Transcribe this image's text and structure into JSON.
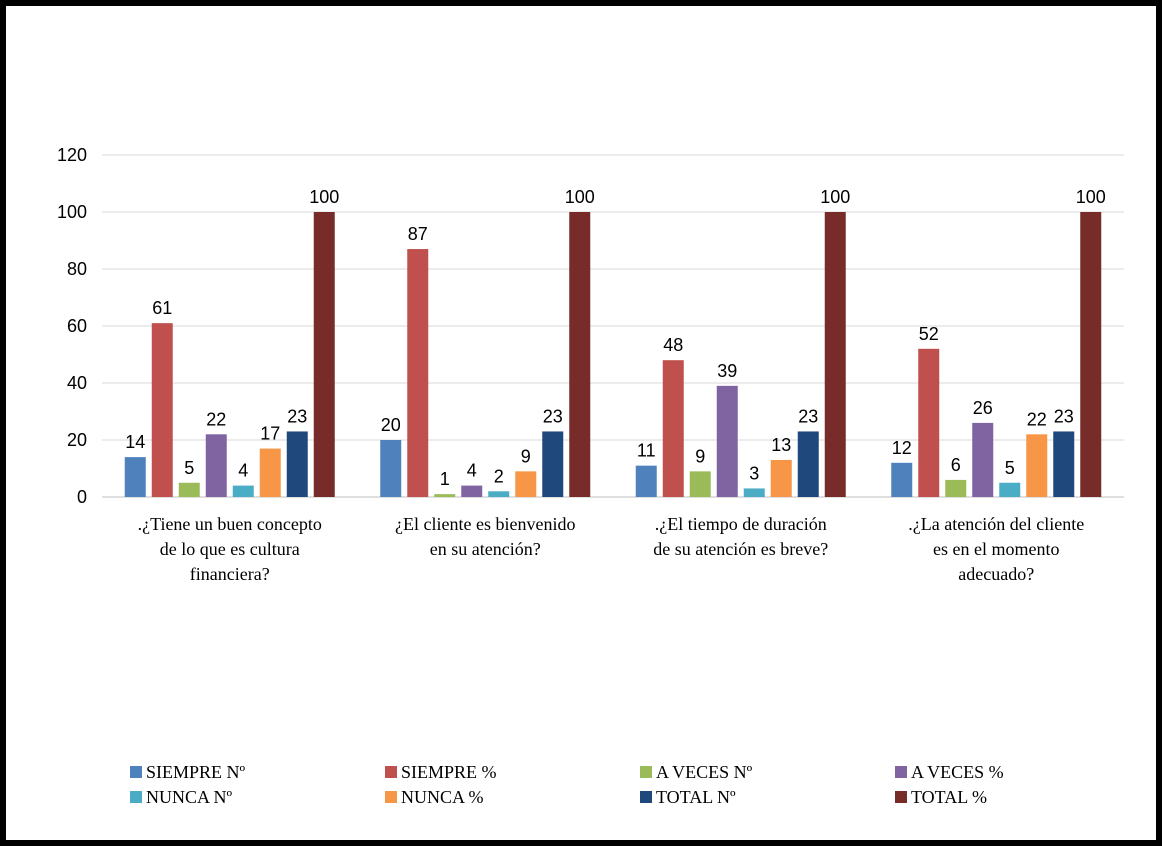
{
  "chart_data": {
    "type": "bar",
    "categories": [
      ".¿Tiene un buen concepto de lo que es cultura financiera?",
      "¿El cliente es bienvenido en su atención?",
      ".¿El tiempo de duración de su atención es breve?",
      ".¿La atención del cliente es en el momento adecuado?"
    ],
    "category_lines": [
      [
        ".¿Tiene un buen concepto",
        "de lo que es cultura",
        "financiera?"
      ],
      [
        "¿El cliente es bienvenido",
        "en su atención?"
      ],
      [
        ".¿El tiempo de duración",
        "de su atención es breve?"
      ],
      [
        ".¿La atención del cliente",
        "es en el momento",
        "adecuado?"
      ]
    ],
    "series": [
      {
        "name": "SIEMPRE Nº",
        "color": "#4F81BD",
        "values": [
          14,
          20,
          11,
          12
        ]
      },
      {
        "name": "SIEMPRE %",
        "color": "#C0504D",
        "values": [
          61,
          87,
          48,
          52
        ]
      },
      {
        "name": "A VECES Nº",
        "color": "#9BBB59",
        "values": [
          5,
          1,
          9,
          6
        ]
      },
      {
        "name": "A VECES %",
        "color": "#8064A2",
        "values": [
          22,
          4,
          39,
          26
        ]
      },
      {
        "name": "NUNCA Nº",
        "color": "#4BACC6",
        "values": [
          4,
          2,
          3,
          5
        ]
      },
      {
        "name": "NUNCA %",
        "color": "#F79646",
        "values": [
          17,
          9,
          13,
          22
        ]
      },
      {
        "name": "TOTAL  Nº",
        "color": "#1F497D",
        "values": [
          23,
          23,
          23,
          23
        ]
      },
      {
        "name": "TOTAL  %",
        "color": "#772C2A",
        "values": [
          100,
          100,
          100,
          100
        ]
      }
    ],
    "y_ticks": [
      "0",
      "20",
      "40",
      "60",
      "80",
      "100",
      "120"
    ],
    "ylim": [
      0,
      120
    ],
    "grid": true,
    "legend_position": "bottom",
    "data_labels": true
  }
}
